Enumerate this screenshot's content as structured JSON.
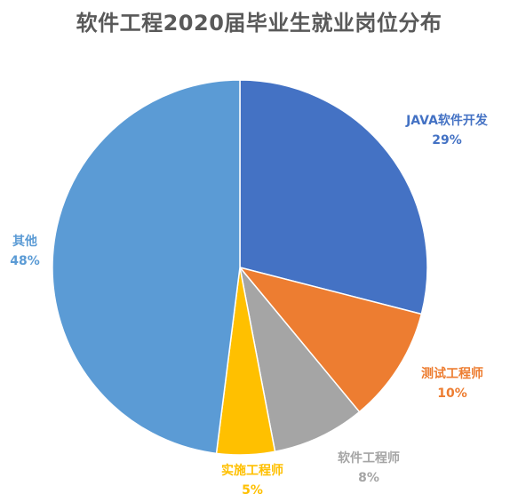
{
  "chart_data": {
    "type": "pie",
    "title": "软件工程2020届毕业生就业岗位分布",
    "start_angle_deg": 0,
    "direction": "clockwise",
    "legend": "none",
    "slices": [
      {
        "label": "JAVA软件开发",
        "value": 29,
        "percent_label": "29%",
        "color": "#4472C4"
      },
      {
        "label": "测试工程师",
        "value": 10,
        "percent_label": "10%",
        "color": "#ED7D31"
      },
      {
        "label": "软件工程师",
        "value": 8,
        "percent_label": "8%",
        "color": "#A5A5A5"
      },
      {
        "label": "实施工程师",
        "value": 5,
        "percent_label": "5%",
        "color": "#FFC000"
      },
      {
        "label": "其他",
        "value": 48,
        "percent_label": "48%",
        "color": "#5B9BD5"
      }
    ]
  }
}
